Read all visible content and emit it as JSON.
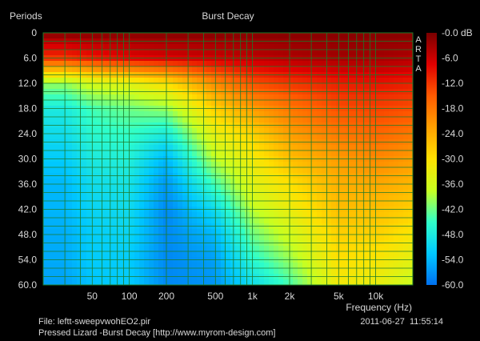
{
  "chart_data": {
    "type": "heatmap",
    "title": "Burst Decay",
    "ylabel": "Periods",
    "xlabel": "Frequency (Hz)",
    "x_scale": "log",
    "xlim": [
      20,
      20000
    ],
    "ylim": [
      0,
      60
    ],
    "y_ticks": [
      "0",
      "6.0",
      "12.0",
      "18.0",
      "24.0",
      "30.0",
      "36.0",
      "42.0",
      "48.0",
      "54.0",
      "60.0"
    ],
    "y_tick_values": [
      0,
      6,
      12,
      18,
      24,
      30,
      36,
      42,
      48,
      54,
      60
    ],
    "x_ticks": [
      "50",
      "100",
      "200",
      "500",
      "1k",
      "2k",
      "5k",
      "10k"
    ],
    "x_tick_values": [
      50,
      100,
      200,
      500,
      1000,
      2000,
      5000,
      10000
    ],
    "colorbar": {
      "ticks": [
        "-0.0 dB",
        "-6.0",
        "-12.0",
        "-18.0",
        "-24.0",
        "-30.0",
        "-36.0",
        "-42.0",
        "-48.0",
        "-54.0",
        "-60.0"
      ],
      "range_db": [
        0,
        -60
      ],
      "colors": [
        "#7a0000",
        "#e00000",
        "#ff5a00",
        "#ffa000",
        "#ffe000",
        "#c8ff20",
        "#30ffc8",
        "#00c8ff",
        "#0070f0"
      ]
    },
    "watermark": "ARTA",
    "grid": true,
    "grid_color": "#1c7a2a",
    "levels_db_by_frequency": [
      {
        "hz": 30,
        "decay": [
          -1,
          -12,
          -40,
          -48,
          -50,
          -52,
          -54,
          -54,
          -55,
          -55,
          -56
        ]
      },
      {
        "hz": 50,
        "decay": [
          -1,
          -10,
          -36,
          -44,
          -46,
          -48,
          -50,
          -51,
          -52,
          -52,
          -53
        ]
      },
      {
        "hz": 100,
        "decay": [
          -1,
          -8,
          -34,
          -42,
          -45,
          -47,
          -49,
          -50,
          -51,
          -52,
          -52
        ]
      },
      {
        "hz": 200,
        "decay": [
          -1,
          -7,
          -30,
          -40,
          -48,
          -54,
          -57,
          -58,
          -58,
          -58,
          -58
        ]
      },
      {
        "hz": 500,
        "decay": [
          -1,
          -6,
          -20,
          -28,
          -33,
          -38,
          -44,
          -50,
          -54,
          -56,
          -57
        ]
      },
      {
        "hz": 1000,
        "decay": [
          -1,
          -5,
          -14,
          -22,
          -28,
          -32,
          -34,
          -38,
          -42,
          -46,
          -50
        ]
      },
      {
        "hz": 2000,
        "decay": [
          -1,
          -4,
          -12,
          -18,
          -22,
          -26,
          -30,
          -33,
          -36,
          -40,
          -44
        ]
      },
      {
        "hz": 5000,
        "decay": [
          -1,
          -3,
          -10,
          -14,
          -18,
          -22,
          -24,
          -26,
          -28,
          -30,
          -32
        ]
      },
      {
        "hz": 10000,
        "decay": [
          -1,
          -3,
          -9,
          -13,
          -16,
          -20,
          -23,
          -26,
          -28,
          -31,
          -33
        ]
      },
      {
        "hz": 20000,
        "decay": [
          -1,
          -4,
          -10,
          -14,
          -18,
          -22,
          -25,
          -28,
          -31,
          -34,
          -37
        ]
      }
    ]
  },
  "footer": {
    "file": "File: leftt-sweepvwohEO2.pir",
    "caption": "Pressed Lizard -Burst Decay [http://www.myrom-design.com]",
    "datetime": "2011-06-27  11:55:14"
  }
}
